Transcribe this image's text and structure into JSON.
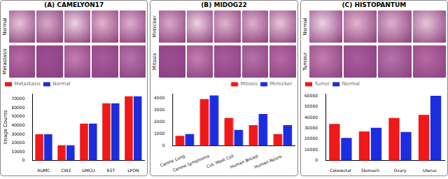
{
  "panels": [
    {
      "title": "(A) CAMELYON17",
      "rows": [
        "Normal",
        "Metastasis"
      ]
    },
    {
      "title": "(B) MIDOG22",
      "rows": [
        "Mimicker",
        "Mitosis"
      ]
    },
    {
      "title": "(C) HISTOPANTUM",
      "rows": [
        "Normal",
        "Tumour"
      ]
    }
  ],
  "chart_data": [
    {
      "type": "bar",
      "y_label": "Image Counts",
      "categories": [
        "RUMC",
        "CWZ",
        "UMCU",
        "RST",
        "LPON"
      ],
      "series": [
        {
          "name": "Metastasis",
          "color": "#f01818",
          "values": [
            30000,
            17500,
            42000,
            65000,
            73000
          ]
        },
        {
          "name": "Normal",
          "color": "#1c2ce0",
          "values": [
            30000,
            17500,
            42000,
            65000,
            73000
          ]
        }
      ],
      "ylim": [
        0,
        76000
      ],
      "yticks": [
        0,
        10000,
        20000,
        30000,
        40000,
        50000,
        60000,
        70000
      ],
      "legend": "upper left",
      "grid": false
    },
    {
      "type": "bar",
      "categories": [
        "Canine Lung",
        "Canine Lymphoma",
        "Cut. Mast Cell",
        "Human Breast",
        "Human Neuro."
      ],
      "series": [
        {
          "name": "Mitosis",
          "color": "#f01818",
          "values": [
            850,
            3950,
            2350,
            1750,
            1000
          ]
        },
        {
          "name": "Mimicker",
          "color": "#1c2ce0",
          "values": [
            1000,
            4250,
            1350,
            2700,
            1750
          ]
        }
      ],
      "ylim": [
        0,
        4400
      ],
      "yticks": [
        0,
        1000,
        2000,
        3000,
        4000
      ],
      "legend": "upper right",
      "grid": false
    },
    {
      "type": "bar",
      "categories": [
        "Colorectal",
        "Stomach",
        "Ovary",
        "Uterus"
      ],
      "series": [
        {
          "name": "Tumor",
          "color": "#f01818",
          "values": [
            34000,
            27000,
            39500,
            42500
          ]
        },
        {
          "name": "Normal",
          "color": "#1c2ce0",
          "values": [
            21000,
            30500,
            26500,
            60000
          ]
        }
      ],
      "ylim": [
        0,
        62000
      ],
      "yticks": [
        0,
        10000,
        20000,
        30000,
        40000,
        50000,
        60000
      ],
      "legend": "upper left",
      "grid": false
    }
  ]
}
